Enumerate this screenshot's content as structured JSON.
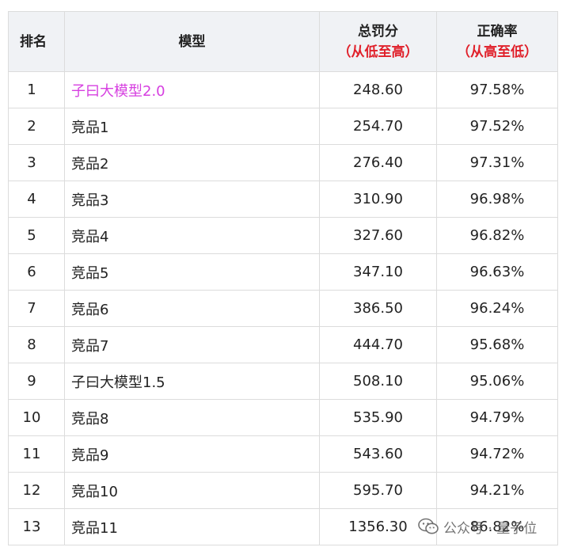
{
  "header": {
    "rank": "排名",
    "model": "模型",
    "penalty": "总罚分",
    "penalty_sort": "（从低至高）",
    "accuracy": "正确率",
    "accuracy_sort": "（从高至低）"
  },
  "rows": [
    {
      "rank": "1",
      "model": "子曰大模型2.0",
      "penalty": "248.60",
      "accuracy": "97.58%"
    },
    {
      "rank": "2",
      "model": "竞品1",
      "penalty": "254.70",
      "accuracy": "97.52%"
    },
    {
      "rank": "3",
      "model": "竞品2",
      "penalty": "276.40",
      "accuracy": "97.31%"
    },
    {
      "rank": "4",
      "model": "竞品3",
      "penalty": "310.90",
      "accuracy": "96.98%"
    },
    {
      "rank": "5",
      "model": "竞品4",
      "penalty": "327.60",
      "accuracy": "96.82%"
    },
    {
      "rank": "6",
      "model": "竞品5",
      "penalty": "347.10",
      "accuracy": "96.63%"
    },
    {
      "rank": "7",
      "model": "竞品6",
      "penalty": "386.50",
      "accuracy": "96.24%"
    },
    {
      "rank": "8",
      "model": "竞品7",
      "penalty": "444.70",
      "accuracy": "95.68%"
    },
    {
      "rank": "9",
      "model": "子曰大模型1.5",
      "penalty": "508.10",
      "accuracy": "95.06%"
    },
    {
      "rank": "10",
      "model": "竞品8",
      "penalty": "535.90",
      "accuracy": "94.79%"
    },
    {
      "rank": "11",
      "model": "竞品9",
      "penalty": "543.60",
      "accuracy": "94.72%"
    },
    {
      "rank": "12",
      "model": "竞品10",
      "penalty": "595.70",
      "accuracy": "94.21%"
    },
    {
      "rank": "13",
      "model": "竞品11",
      "penalty": "1356.30",
      "accuracy": "86.82%"
    }
  ],
  "watermark": {
    "text": "公众号 · 量子位",
    "icon": "wechat-icon"
  },
  "colors": {
    "highlight": "#d63fe0",
    "sort_note": "#e0202a",
    "header_bg": "#f0f2f5"
  }
}
